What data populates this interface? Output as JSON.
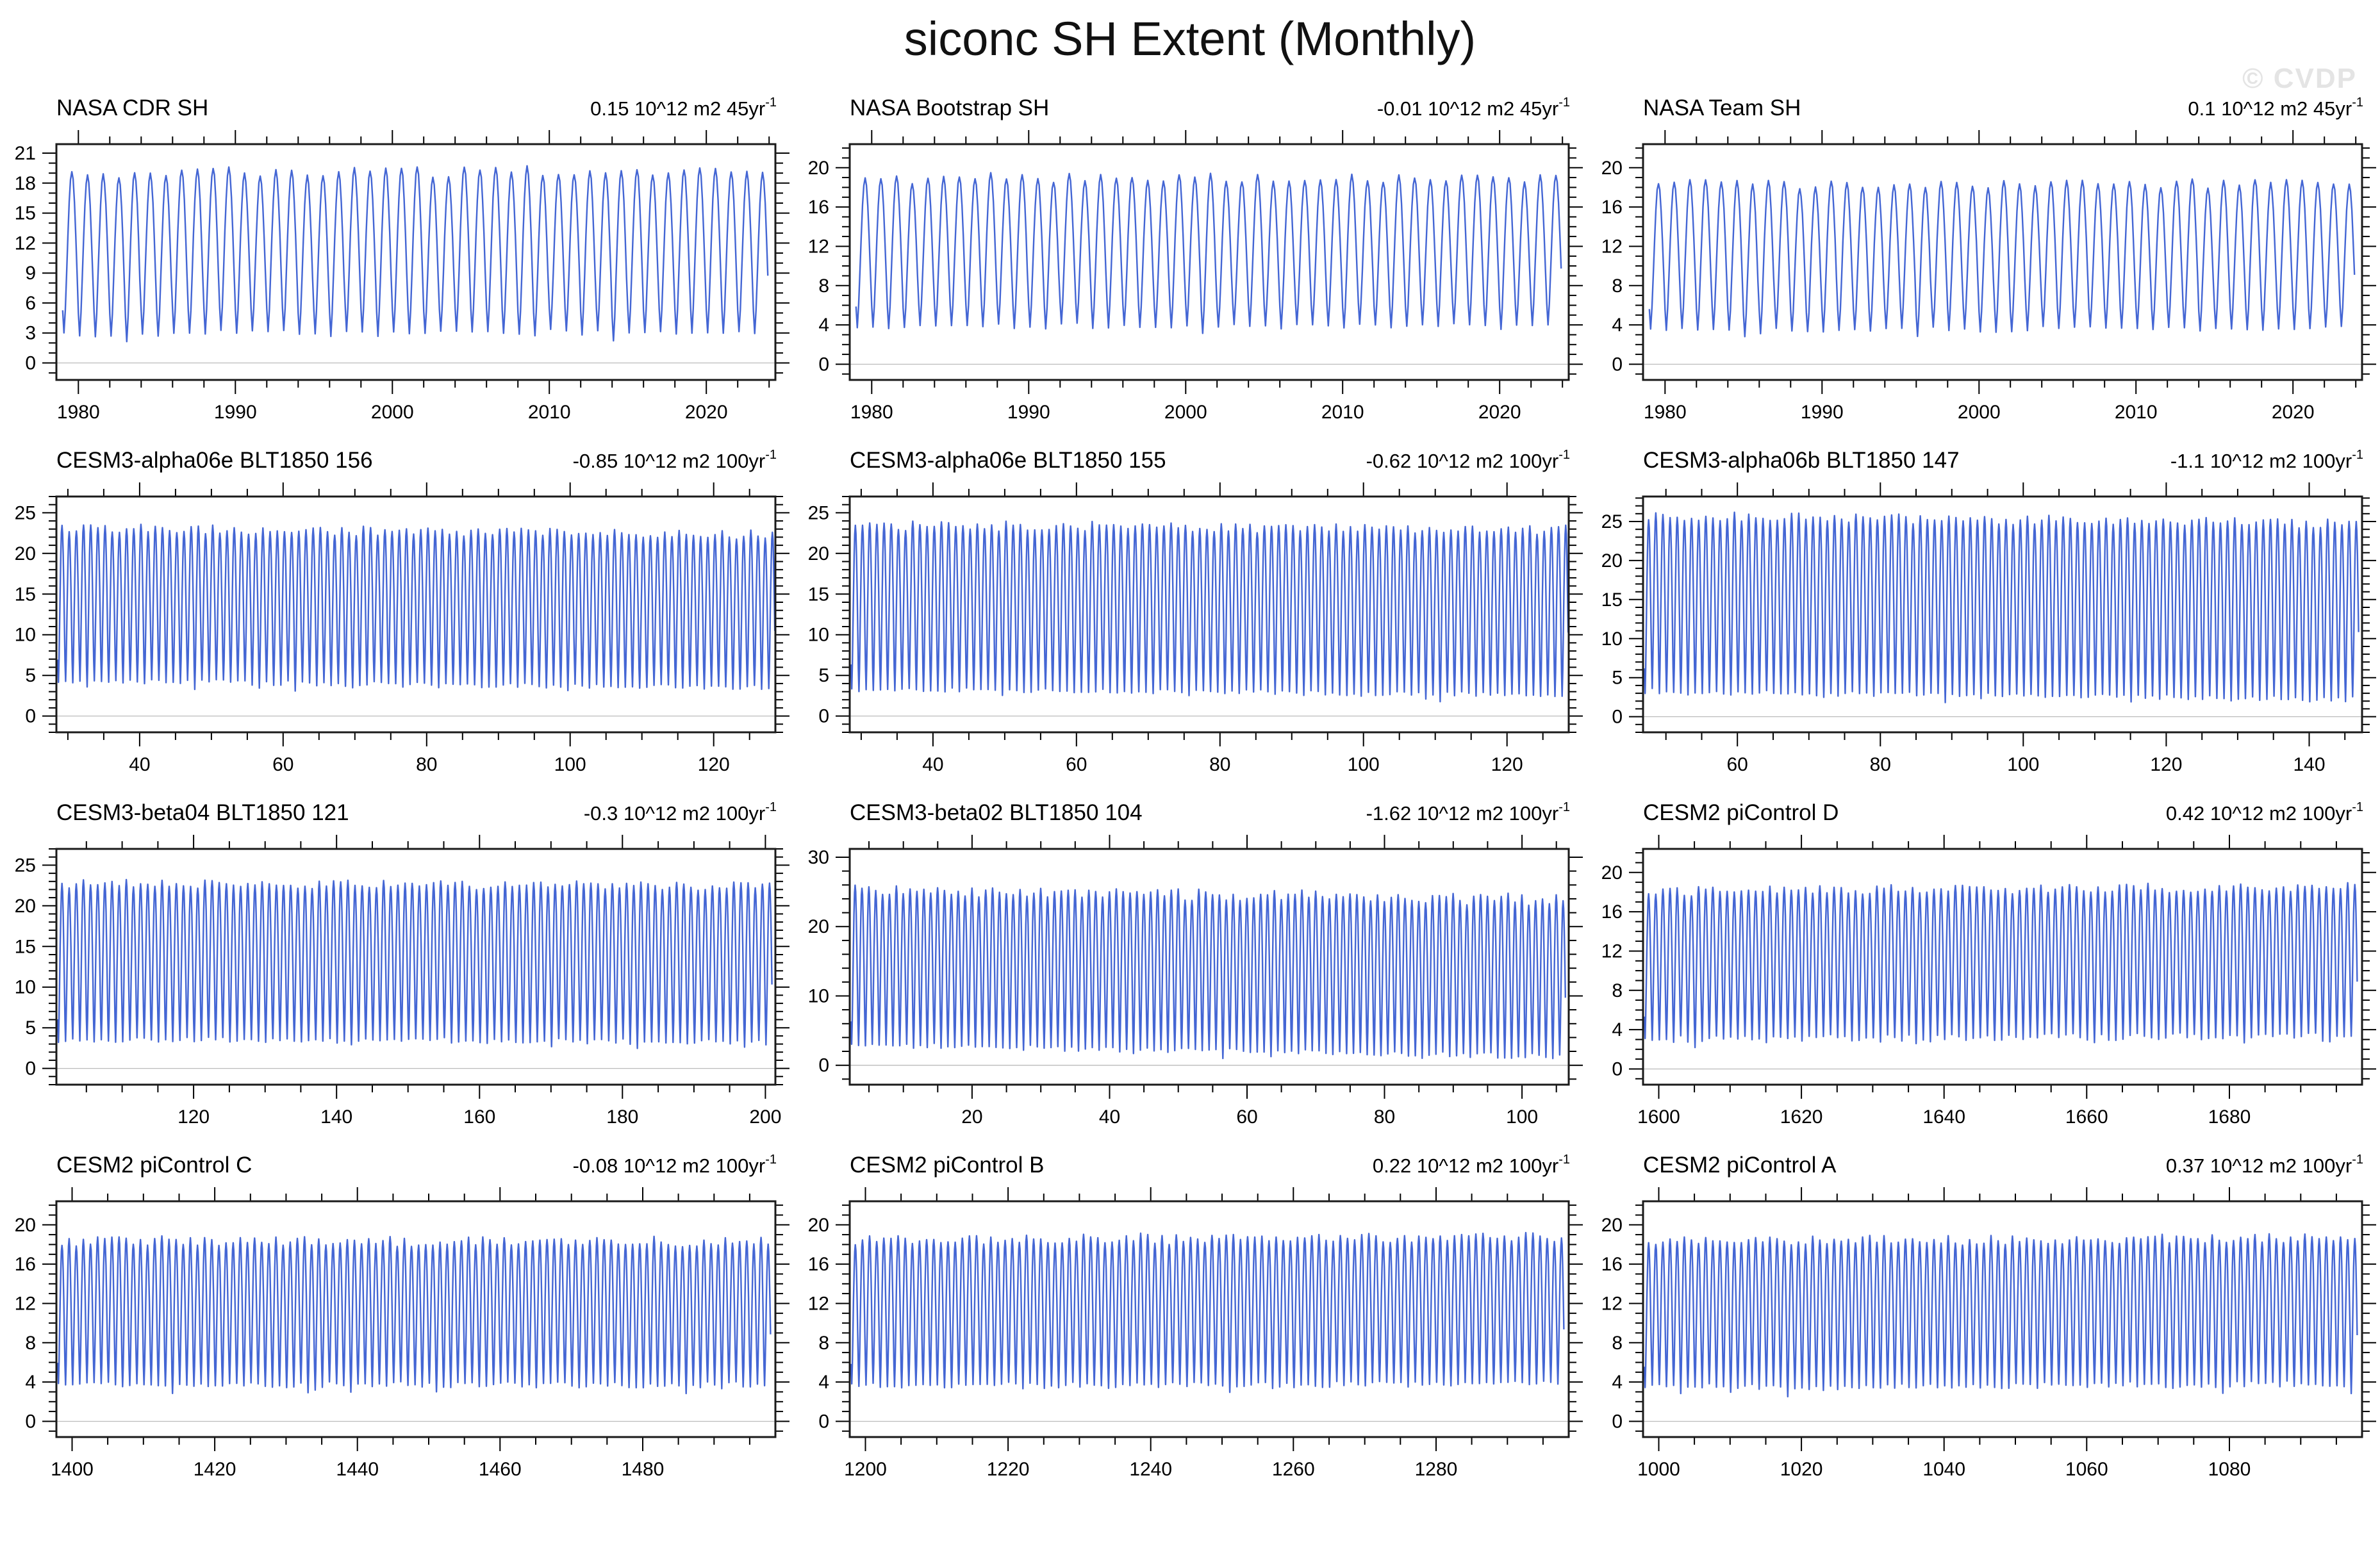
{
  "page": {
    "title": "siconc SH Extent (Monthly)",
    "watermark": "© CVDP",
    "colors": {
      "series_line": "#4466d4",
      "zero_line": "#bbbbbb",
      "frame": "#1a1a1a",
      "watermark": "#e4e4e4"
    }
  },
  "chart_data": [
    {
      "id": "nasa-cdr-sh",
      "type": "line",
      "title": "NASA CDR SH",
      "trend": "0.15 10^12 m2 45yr",
      "trend_exp": "-1",
      "xlim": [
        1978.6,
        2024.4
      ],
      "ylim": [
        -1.7,
        21.9
      ],
      "xticks": [
        1980,
        1990,
        2000,
        2010,
        2020
      ],
      "yticks": [
        0,
        3,
        6,
        9,
        12,
        15,
        18,
        21
      ],
      "x_minor_step": 2,
      "y_minor_step": 1,
      "zero_line": true,
      "series": {
        "kind": "monthly_seasonal_cycle",
        "start_x": 1979.0,
        "n_months": 540,
        "seasonal_min": 3.0,
        "seasonal_max": 19.2,
        "min_month": "Feb",
        "max_month": "Sep",
        "peak_jitter": 0.55,
        "trough_jitter": 0.3,
        "trend_total": 0.15,
        "seed": 11
      }
    },
    {
      "id": "nasa-bootstrap-sh",
      "type": "line",
      "title": "NASA Bootstrap SH",
      "trend": "-0.01 10^12 m2 45yr",
      "trend_exp": "-1",
      "xlim": [
        1978.6,
        2024.4
      ],
      "ylim": [
        -1.6,
        22.4
      ],
      "xticks": [
        1980,
        1990,
        2000,
        2010,
        2020
      ],
      "yticks": [
        0,
        4,
        8,
        12,
        16,
        20
      ],
      "x_minor_step": 2,
      "y_minor_step": 1,
      "zero_line": true,
      "series": {
        "kind": "monthly_seasonal_cycle",
        "start_x": 1979.0,
        "n_months": 540,
        "seasonal_min": 3.9,
        "seasonal_max": 18.9,
        "min_month": "Feb",
        "max_month": "Sep",
        "peak_jitter": 0.55,
        "trough_jitter": 0.3,
        "trend_total": -0.01,
        "seed": 22
      }
    },
    {
      "id": "nasa-team-sh",
      "type": "line",
      "title": "NASA Team SH",
      "trend": "0.1 10^12 m2 45yr",
      "trend_exp": "-1",
      "xlim": [
        1978.6,
        2024.4
      ],
      "ylim": [
        -1.6,
        22.4
      ],
      "xticks": [
        1980,
        1990,
        2000,
        2010,
        2020
      ],
      "yticks": [
        0,
        4,
        8,
        12,
        16,
        20
      ],
      "x_minor_step": 2,
      "y_minor_step": 1,
      "zero_line": true,
      "series": {
        "kind": "monthly_seasonal_cycle",
        "start_x": 1979.0,
        "n_months": 540,
        "seasonal_min": 3.5,
        "seasonal_max": 18.4,
        "min_month": "Feb",
        "max_month": "Sep",
        "peak_jitter": 0.55,
        "trough_jitter": 0.3,
        "trend_total": 0.1,
        "seed": 33
      }
    },
    {
      "id": "cesm3-alpha06e-blt1850-156",
      "type": "line",
      "title": "CESM3-alpha06e BLT1850 156",
      "trend": "-0.85 10^12 m2 100yr",
      "trend_exp": "-1",
      "xlim": [
        28.4,
        128.6
      ],
      "ylim": [
        -2.0,
        27.0
      ],
      "xticks": [
        40,
        60,
        80,
        100,
        120
      ],
      "yticks": [
        0,
        5,
        10,
        15,
        20,
        25
      ],
      "x_minor_step": 5,
      "y_minor_step": 1,
      "zero_line": true,
      "series": {
        "kind": "monthly_seasonal_cycle",
        "start_x": 28.6,
        "n_months": 1200,
        "seasonal_min": 3.9,
        "seasonal_max": 22.7,
        "min_month": "Feb",
        "max_month": "Sep",
        "peak_jitter": 0.55,
        "trough_jitter": 0.3,
        "trend_total": -0.85,
        "seed": 44
      }
    },
    {
      "id": "cesm3-alpha06e-blt1850-155",
      "type": "line",
      "title": "CESM3-alpha06e BLT1850 155",
      "trend": "-0.62 10^12 m2 100yr",
      "trend_exp": "-1",
      "xlim": [
        28.4,
        128.6
      ],
      "ylim": [
        -2.0,
        27.0
      ],
      "xticks": [
        40,
        60,
        80,
        100,
        120
      ],
      "yticks": [
        0,
        5,
        10,
        15,
        20,
        25
      ],
      "x_minor_step": 5,
      "y_minor_step": 1,
      "zero_line": true,
      "series": {
        "kind": "monthly_seasonal_cycle",
        "start_x": 28.6,
        "n_months": 1200,
        "seasonal_min": 2.9,
        "seasonal_max": 23.2,
        "min_month": "Feb",
        "max_month": "Sep",
        "peak_jitter": 0.6,
        "trough_jitter": 0.3,
        "trend_total": -0.62,
        "seed": 55
      }
    },
    {
      "id": "cesm3-alpha06b-blt1850-147",
      "type": "line",
      "title": "CESM3-alpha06b BLT1850 147",
      "trend": "-1.1 10^12 m2 100yr",
      "trend_exp": "-1",
      "xlim": [
        46.8,
        147.4
      ],
      "ylim": [
        -2.0,
        28.2
      ],
      "xticks": [
        60,
        80,
        100,
        120,
        140
      ],
      "yticks": [
        0,
        5,
        10,
        15,
        20,
        25
      ],
      "x_minor_step": 5,
      "y_minor_step": 1,
      "zero_line": true,
      "series": {
        "kind": "monthly_seasonal_cycle",
        "start_x": 47.0,
        "n_months": 1200,
        "seasonal_min": 2.7,
        "seasonal_max": 25.2,
        "min_month": "Feb",
        "max_month": "Sep",
        "peak_jitter": 0.6,
        "trough_jitter": 0.3,
        "trend_total": -1.1,
        "seed": 66
      }
    },
    {
      "id": "cesm3-beta04-blt1850-121",
      "type": "line",
      "title": "CESM3-beta04 BLT1850 121",
      "trend": "-0.3 10^12 m2 100yr",
      "trend_exp": "-1",
      "xlim": [
        100.8,
        201.4
      ],
      "ylim": [
        -2.0,
        27.0
      ],
      "xticks": [
        120,
        140,
        160,
        180,
        200
      ],
      "yticks": [
        0,
        5,
        10,
        15,
        20,
        25
      ],
      "x_minor_step": 5,
      "y_minor_step": 1,
      "zero_line": true,
      "series": {
        "kind": "monthly_seasonal_cycle",
        "start_x": 101.0,
        "n_months": 1200,
        "seasonal_min": 3.4,
        "seasonal_max": 22.6,
        "min_month": "Feb",
        "max_month": "Sep",
        "peak_jitter": 0.55,
        "trough_jitter": 0.3,
        "trend_total": -0.3,
        "seed": 77
      }
    },
    {
      "id": "cesm3-beta02-blt1850-104",
      "type": "line",
      "title": "CESM3-beta02 BLT1850 104",
      "trend": "-1.62 10^12 m2 100yr",
      "trend_exp": "-1",
      "xlim": [
        2.2,
        106.8
      ],
      "ylim": [
        -2.8,
        31.2
      ],
      "xticks": [
        20,
        40,
        60,
        80,
        100
      ],
      "yticks": [
        0,
        10,
        20,
        30
      ],
      "x_minor_step": 5,
      "y_minor_step": 2,
      "zero_line": true,
      "series": {
        "kind": "monthly_seasonal_cycle",
        "start_x": 2.4,
        "n_months": 1248,
        "seasonal_min": 2.1,
        "seasonal_max": 24.6,
        "min_month": "Feb",
        "max_month": "Sep",
        "peak_jitter": 0.9,
        "trough_jitter": 0.35,
        "trend_total": -1.68,
        "seed": 88
      }
    },
    {
      "id": "cesm2-picontrol-d",
      "type": "line",
      "title": "CESM2 piControl D",
      "trend": "0.42 10^12 m2 100yr",
      "trend_exp": "-1",
      "xlim": [
        1597.8,
        1698.6
      ],
      "ylim": [
        -1.6,
        22.4
      ],
      "xticks": [
        1600,
        1620,
        1640,
        1660,
        1680
      ],
      "yticks": [
        0,
        4,
        8,
        12,
        16,
        20
      ],
      "x_minor_step": 5,
      "y_minor_step": 1,
      "zero_line": true,
      "series": {
        "kind": "monthly_seasonal_cycle",
        "start_x": 1598.0,
        "n_months": 1200,
        "seasonal_min": 3.2,
        "seasonal_max": 18.3,
        "min_month": "Feb",
        "max_month": "Sep",
        "peak_jitter": 0.5,
        "trough_jitter": 0.35,
        "trend_total": 0.42,
        "seed": 99
      }
    },
    {
      "id": "cesm2-picontrol-c",
      "type": "line",
      "title": "CESM2 piControl C",
      "trend": "-0.08 10^12 m2 100yr",
      "trend_exp": "-1",
      "xlim": [
        1397.8,
        1498.6
      ],
      "ylim": [
        -1.6,
        22.4
      ],
      "xticks": [
        1400,
        1420,
        1440,
        1460,
        1480
      ],
      "yticks": [
        0,
        4,
        8,
        12,
        16,
        20
      ],
      "x_minor_step": 5,
      "y_minor_step": 1,
      "zero_line": true,
      "series": {
        "kind": "monthly_seasonal_cycle",
        "start_x": 1398.0,
        "n_months": 1200,
        "seasonal_min": 3.7,
        "seasonal_max": 18.3,
        "min_month": "Feb",
        "max_month": "Sep",
        "peak_jitter": 0.5,
        "trough_jitter": 0.3,
        "trend_total": -0.08,
        "seed": 110
      }
    },
    {
      "id": "cesm2-picontrol-b",
      "type": "line",
      "title": "CESM2 piControl B",
      "trend": "0.22 10^12 m2 100yr",
      "trend_exp": "-1",
      "xlim": [
        1197.8,
        1298.6
      ],
      "ylim": [
        -1.6,
        22.4
      ],
      "xticks": [
        1200,
        1220,
        1240,
        1260,
        1280
      ],
      "yticks": [
        0,
        4,
        8,
        12,
        16,
        20
      ],
      "x_minor_step": 5,
      "y_minor_step": 1,
      "zero_line": true,
      "series": {
        "kind": "monthly_seasonal_cycle",
        "start_x": 1198.0,
        "n_months": 1200,
        "seasonal_min": 3.7,
        "seasonal_max": 18.6,
        "min_month": "Feb",
        "max_month": "Sep",
        "peak_jitter": 0.5,
        "trough_jitter": 0.3,
        "trend_total": 0.22,
        "seed": 121
      }
    },
    {
      "id": "cesm2-picontrol-a",
      "type": "line",
      "title": "CESM2 piControl A",
      "trend": "0.37 10^12 m2 100yr",
      "trend_exp": "-1",
      "xlim": [
        997.8,
        1098.6
      ],
      "ylim": [
        -1.6,
        22.4
      ],
      "xticks": [
        1000,
        1020,
        1040,
        1060,
        1080
      ],
      "yticks": [
        0,
        4,
        8,
        12,
        16,
        20
      ],
      "x_minor_step": 5,
      "y_minor_step": 1,
      "zero_line": true,
      "series": {
        "kind": "monthly_seasonal_cycle",
        "start_x": 998.0,
        "n_months": 1200,
        "seasonal_min": 3.6,
        "seasonal_max": 18.5,
        "min_month": "Feb",
        "max_month": "Sep",
        "peak_jitter": 0.5,
        "trough_jitter": 0.3,
        "trend_total": 0.37,
        "seed": 132
      }
    }
  ]
}
